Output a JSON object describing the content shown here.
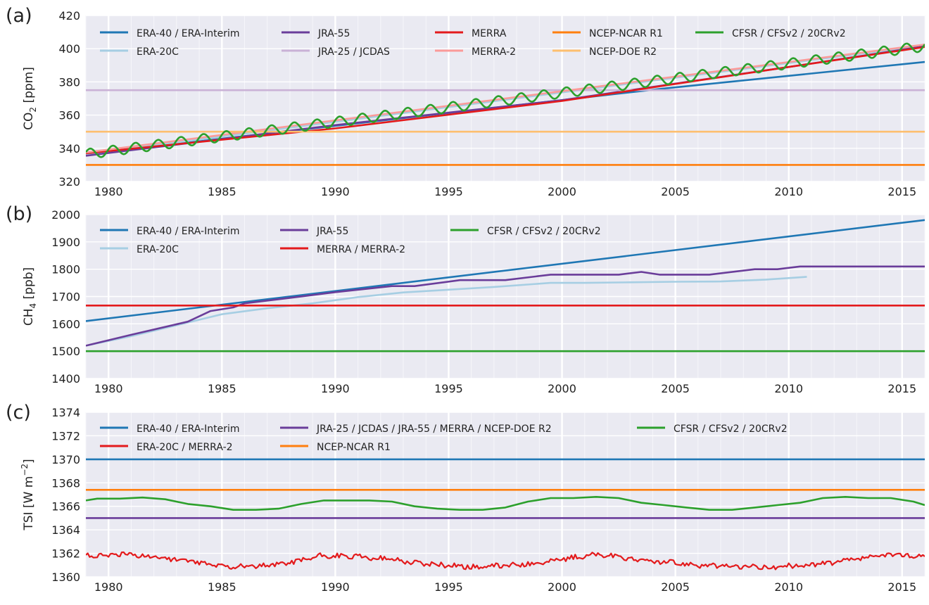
{
  "chart_data": [
    {
      "type": "line",
      "panel_label": "(a)",
      "ylabel": "CO2 [ppm]",
      "ylabel_main": "CO",
      "ylabel_sub": "2",
      "ylabel_tail": " [ppm]",
      "xlim": [
        1979,
        2016
      ],
      "ylim": [
        320,
        420
      ],
      "x_ticks": [
        1980,
        1985,
        1990,
        1995,
        2000,
        2005,
        2010,
        2015
      ],
      "y_ticks": [
        320,
        340,
        360,
        380,
        400,
        420
      ],
      "grid": true,
      "legend": "top, 5 columns",
      "series": [
        {
          "name": "ERA-40 / ERA-Interim",
          "color": "#1f77b4",
          "x": [
            1979,
            2004.5,
            2016
          ],
          "y": [
            336.5,
            376,
            392
          ]
        },
        {
          "name": "ERA-20C",
          "color": "#a6cee3",
          "x": [
            1979,
            2016
          ],
          "y": [
            336.5,
            402
          ]
        },
        {
          "name": "JRA-55",
          "color": "#6a3d9a",
          "x": [
            1979,
            1990,
            2000,
            2010,
            2016
          ],
          "y": [
            335.5,
            354,
            369,
            389,
            401.5
          ]
        },
        {
          "name": "JRA-25 / JCDAS",
          "color": "#cab2d6",
          "x": [
            1979,
            2016
          ],
          "y": [
            375,
            375
          ]
        },
        {
          "name": "MERRA",
          "color": "#e31a1c",
          "x": [
            1979,
            1990,
            2000,
            2010,
            2016
          ],
          "y": [
            337,
            352,
            368.5,
            389,
            401
          ]
        },
        {
          "name": "MERRA-2",
          "color": "#fb9a99",
          "x": [
            1979,
            2016
          ],
          "y": [
            337.5,
            402.5
          ]
        },
        {
          "name": "NCEP-NCAR R1",
          "color": "#ff7f0e",
          "x": [
            1979,
            2016
          ],
          "y": [
            330,
            330
          ]
        },
        {
          "name": "NCEP-DOE R2",
          "color": "#fdbf6f",
          "x": [
            1979,
            2016
          ],
          "y": [
            350,
            350
          ]
        },
        {
          "name": "CFSR / CFSv2 / 20CRv2",
          "color": "#2ca02c",
          "x": [
            1979,
            2016
          ],
          "y": [
            336.5,
            401.5
          ],
          "seasonal_amplitude": 3
        }
      ]
    },
    {
      "type": "line",
      "panel_label": "(b)",
      "ylabel": "CH4 [ppb]",
      "ylabel_main": "CH",
      "ylabel_sub": "4",
      "ylabel_tail": " [ppb]",
      "xlim": [
        1979,
        2016
      ],
      "ylim": [
        1400,
        2000
      ],
      "x_ticks": [
        1980,
        1985,
        1990,
        1995,
        2000,
        2005,
        2010,
        2015
      ],
      "y_ticks": [
        1400,
        1500,
        1600,
        1700,
        1800,
        1900,
        2000
      ],
      "grid": true,
      "legend": "top, 3 columns",
      "series": [
        {
          "name": "ERA-40 / ERA-Interim",
          "color": "#1f77b4",
          "x": [
            1979,
            2016
          ],
          "y": [
            1610,
            1980
          ]
        },
        {
          "name": "ERA-20C",
          "color": "#a6cee3",
          "x": [
            1979,
            1981,
            1983,
            1985,
            1987,
            1989,
            1991,
            1993,
            1995,
            1997,
            1999.5,
            2001,
            2003,
            2005,
            2007,
            2009,
            2010.8
          ],
          "y": [
            1520,
            1555,
            1595,
            1635,
            1657,
            1675,
            1698,
            1715,
            1725,
            1735,
            1750,
            1750,
            1752,
            1754,
            1755,
            1762,
            1772
          ]
        },
        {
          "name": "JRA-55",
          "color": "#6a3d9a",
          "x": [
            1979,
            1981,
            1983.5,
            1984.5,
            1985.5,
            1986,
            1988,
            1990,
            1992.5,
            1993.5,
            1995.5,
            1997.5,
            1999.5,
            2002.5,
            2003.5,
            2004.3,
            2006.5,
            2008.5,
            2009.5,
            2010.5,
            2016
          ],
          "y": [
            1520,
            1560,
            1608,
            1647,
            1660,
            1675,
            1695,
            1716,
            1738,
            1738,
            1760,
            1760,
            1780,
            1780,
            1790,
            1780,
            1780,
            1800,
            1800,
            1810,
            1810
          ]
        },
        {
          "name": "MERRA / MERRA-2",
          "color": "#e31a1c",
          "x": [
            1979,
            2016
          ],
          "y": [
            1667,
            1667
          ]
        },
        {
          "name": "CFSR / CFSv2 / 20CRv2",
          "color": "#2ca02c",
          "x": [
            1979,
            2016
          ],
          "y": [
            1500,
            1500
          ]
        }
      ]
    },
    {
      "type": "line",
      "panel_label": "(c)",
      "ylabel": "TSI [W m−2]",
      "ylabel_main": "TSI [W m",
      "ylabel_sup": "−2",
      "ylabel_tail": "]",
      "xlim": [
        1979,
        2016
      ],
      "ylim": [
        1360,
        1374
      ],
      "x_ticks": [
        1980,
        1985,
        1990,
        1995,
        2000,
        2005,
        2010,
        2015
      ],
      "y_ticks": [
        1360,
        1362,
        1364,
        1366,
        1368,
        1370,
        1372,
        1374
      ],
      "grid": true,
      "legend": "top, 3 columns",
      "series": [
        {
          "name": "ERA-40 / ERA-Interim",
          "color": "#1f77b4",
          "x": [
            1979,
            2016
          ],
          "y": [
            1370,
            1370
          ]
        },
        {
          "name": "ERA-20C / MERRA-2",
          "color": "#e31a1c",
          "x": [
            1979,
            1981,
            1983,
            1985,
            1987,
            1989.5,
            1992,
            1994,
            1996.5,
            1999,
            2001.5,
            2004,
            2007,
            2009.5,
            2012,
            2014.5,
            2016
          ],
          "y": [
            1361.8,
            1361.9,
            1361.5,
            1360.9,
            1360.9,
            1361.8,
            1361.6,
            1361.1,
            1360.8,
            1361.2,
            1361.9,
            1361.3,
            1360.9,
            1360.8,
            1361.2,
            1361.9,
            1361.7
          ],
          "noise": 0.2
        },
        {
          "name": "JRA-25 / JCDAS / JRA-55 / MERRA / NCEP-DOE R2",
          "color": "#6a3d9a",
          "x": [
            1979,
            2016
          ],
          "y": [
            1365,
            1365
          ]
        },
        {
          "name": "NCEP-NCAR R1",
          "color": "#ff7f0e",
          "x": [
            1979,
            2016
          ],
          "y": [
            1367.4,
            1367.4
          ]
        },
        {
          "name": "CFSR / CFSv2 / 20CRv2",
          "color": "#2ca02c",
          "x": [
            1979,
            1979.5,
            1980.5,
            1981.5,
            1982.5,
            1983.5,
            1984.5,
            1985.5,
            1986.5,
            1987.5,
            1988.5,
            1989.5,
            1990.5,
            1991.5,
            1992.5,
            1993.5,
            1994.5,
            1995.5,
            1996.5,
            1997.5,
            1998.5,
            1999.5,
            2000.5,
            2001.5,
            2002.5,
            2003.5,
            2004.5,
            2005.5,
            2006.5,
            2007.5,
            2008.5,
            2009.5,
            2010.5,
            2011.5,
            2012.5,
            2013.5,
            2014.5,
            2015.5,
            2016
          ],
          "y": [
            1366.5,
            1366.65,
            1366.65,
            1366.75,
            1366.6,
            1366.2,
            1366.0,
            1365.7,
            1365.7,
            1365.8,
            1366.2,
            1366.5,
            1366.5,
            1366.5,
            1366.4,
            1366.0,
            1365.8,
            1365.7,
            1365.7,
            1365.9,
            1366.4,
            1366.7,
            1366.7,
            1366.8,
            1366.7,
            1366.3,
            1366.1,
            1365.9,
            1365.7,
            1365.7,
            1365.9,
            1366.1,
            1366.3,
            1366.7,
            1366.8,
            1366.7,
            1366.7,
            1366.4,
            1366.1
          ]
        }
      ]
    }
  ]
}
